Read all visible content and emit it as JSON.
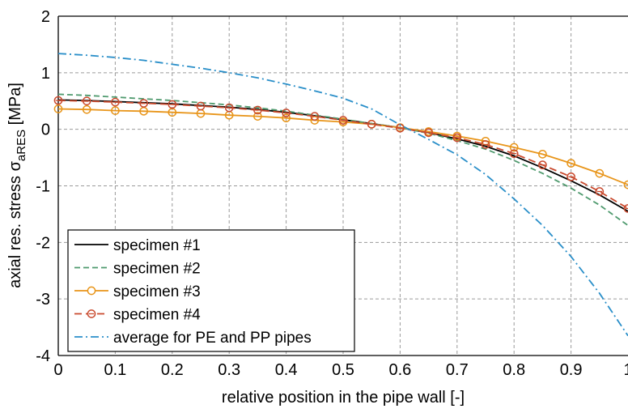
{
  "chart_data": {
    "type": "line",
    "xlabel": "relative position in the pipe wall [-]",
    "ylabel_parts": {
      "pre": "axial res. stress σ",
      "sub": "aRES",
      "post": " [MPa]"
    },
    "xlim": [
      0,
      1
    ],
    "ylim": [
      -4,
      2
    ],
    "x_ticks": [
      0,
      0.1,
      0.2,
      0.3,
      0.4,
      0.5,
      0.6,
      0.7,
      0.8,
      0.9,
      1
    ],
    "x_tick_labels": [
      "0",
      "0.1",
      "0.2",
      "0.3",
      "0.4",
      "0.5",
      "0.6",
      "0.7",
      "0.8",
      "0.9",
      "1"
    ],
    "y_ticks": [
      -4,
      -3,
      -2,
      -1,
      0,
      1,
      2
    ],
    "y_tick_labels": [
      "-4",
      "-3",
      "-2",
      "-1",
      "0",
      "1",
      "2"
    ],
    "grid": true,
    "legend_position": "bottom-left",
    "series": [
      {
        "name": "specimen #1",
        "color": "#000000",
        "dash": "",
        "marker": "none",
        "x": [
          0,
          0.05,
          0.1,
          0.15,
          0.2,
          0.25,
          0.3,
          0.35,
          0.4,
          0.45,
          0.5,
          0.55,
          0.6,
          0.65,
          0.7,
          0.75,
          0.8,
          0.85,
          0.9,
          0.95,
          1
        ],
        "y": [
          0.52,
          0.51,
          0.49,
          0.47,
          0.45,
          0.42,
          0.39,
          0.35,
          0.3,
          0.24,
          0.17,
          0.1,
          0.03,
          -0.06,
          -0.17,
          -0.3,
          -0.47,
          -0.68,
          -0.91,
          -1.16,
          -1.45
        ]
      },
      {
        "name": "specimen #2",
        "color": "#4f9a6e",
        "dash": "7,4",
        "marker": "none",
        "x": [
          0,
          0.05,
          0.1,
          0.15,
          0.2,
          0.25,
          0.3,
          0.35,
          0.4,
          0.45,
          0.5,
          0.55,
          0.6,
          0.65,
          0.7,
          0.75,
          0.8,
          0.85,
          0.9,
          0.95,
          1
        ],
        "y": [
          0.62,
          0.6,
          0.57,
          0.54,
          0.51,
          0.47,
          0.43,
          0.38,
          0.32,
          0.25,
          0.18,
          0.1,
          0.03,
          -0.07,
          -0.2,
          -0.35,
          -0.55,
          -0.78,
          -1.04,
          -1.34,
          -1.7
        ]
      },
      {
        "name": "specimen #3",
        "color": "#e8951a",
        "dash": "",
        "marker": "circle",
        "x": [
          0,
          0.05,
          0.1,
          0.15,
          0.2,
          0.25,
          0.3,
          0.35,
          0.4,
          0.45,
          0.5,
          0.55,
          0.6,
          0.65,
          0.7,
          0.75,
          0.8,
          0.85,
          0.9,
          0.95,
          1
        ],
        "y": [
          0.36,
          0.35,
          0.33,
          0.32,
          0.3,
          0.28,
          0.25,
          0.23,
          0.2,
          0.16,
          0.13,
          0.09,
          0.03,
          -0.04,
          -0.12,
          -0.21,
          -0.32,
          -0.44,
          -0.6,
          -0.78,
          -0.98
        ]
      },
      {
        "name": "specimen #4",
        "color": "#c94a2e",
        "dash": "9,5",
        "marker": "circle",
        "x": [
          0,
          0.05,
          0.1,
          0.15,
          0.2,
          0.25,
          0.3,
          0.35,
          0.4,
          0.45,
          0.5,
          0.55,
          0.6,
          0.65,
          0.7,
          0.75,
          0.8,
          0.85,
          0.9,
          0.95,
          1
        ],
        "y": [
          0.51,
          0.5,
          0.48,
          0.46,
          0.44,
          0.41,
          0.38,
          0.34,
          0.29,
          0.23,
          0.16,
          0.09,
          0.02,
          -0.06,
          -0.15,
          -0.27,
          -0.43,
          -0.63,
          -0.84,
          -1.1,
          -1.4
        ]
      },
      {
        "name": "average for PE and PP pipes",
        "color": "#2a8fc9",
        "dash": "10,4,2,4",
        "marker": "none",
        "x": [
          0,
          0.05,
          0.1,
          0.15,
          0.2,
          0.25,
          0.3,
          0.35,
          0.4,
          0.45,
          0.5,
          0.55,
          0.6,
          0.65,
          0.7,
          0.75,
          0.8,
          0.85,
          0.9,
          0.95,
          1
        ],
        "y": [
          1.34,
          1.31,
          1.27,
          1.22,
          1.15,
          1.08,
          1.0,
          0.91,
          0.8,
          0.68,
          0.55,
          0.36,
          0.08,
          -0.18,
          -0.45,
          -0.8,
          -1.23,
          -1.7,
          -2.25,
          -2.9,
          -3.65
        ]
      }
    ]
  }
}
